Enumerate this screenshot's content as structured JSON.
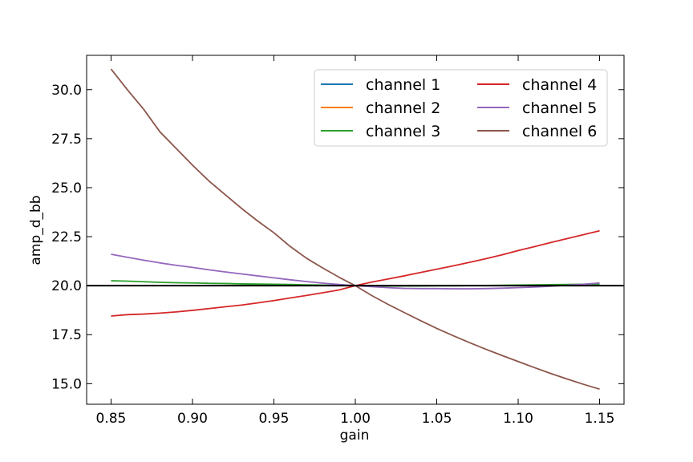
{
  "chart_data": {
    "type": "line",
    "title": "",
    "xlabel": "gain",
    "ylabel": "amp_d_bb",
    "xlim": [
      0.835,
      1.165
    ],
    "ylim": [
      13.95,
      31.75
    ],
    "xticks": [
      0.85,
      0.9,
      0.95,
      1.0,
      1.05,
      1.1,
      1.15
    ],
    "xtick_labels": [
      "0.85",
      "0.90",
      "0.95",
      "1.00",
      "1.05",
      "1.10",
      "1.15"
    ],
    "yticks": [
      15.0,
      17.5,
      20.0,
      22.5,
      25.0,
      27.5,
      30.0
    ],
    "ytick_labels": [
      "15.0",
      "17.5",
      "20.0",
      "22.5",
      "25.0",
      "27.5",
      "30.0"
    ],
    "grid": false,
    "legend_placement": "upper-right",
    "legend_columns": 2,
    "reference_line": {
      "y": 20.0,
      "color": "#000000"
    },
    "x": [
      0.85,
      0.86,
      0.87,
      0.88,
      0.89,
      0.9,
      0.91,
      0.92,
      0.93,
      0.94,
      0.95,
      0.96,
      0.97,
      0.98,
      0.99,
      1.0,
      1.01,
      1.02,
      1.03,
      1.04,
      1.05,
      1.06,
      1.07,
      1.08,
      1.09,
      1.1,
      1.11,
      1.12,
      1.13,
      1.14,
      1.15
    ],
    "series": [
      {
        "name": "channel 1",
        "color": "#1f77b4",
        "values": [
          20.0,
          20.0,
          20.0,
          20.0,
          20.0,
          20.0,
          20.0,
          20.0,
          20.0,
          20.0,
          20.0,
          20.0,
          20.0,
          20.0,
          20.0,
          20.0,
          20.0,
          20.0,
          20.0,
          20.0,
          20.0,
          20.0,
          20.0,
          20.0,
          20.0,
          20.0,
          20.0,
          20.0,
          20.0,
          20.0,
          20.0
        ]
      },
      {
        "name": "channel 2",
        "color": "#ff7f0e",
        "values": [
          20.0,
          20.0,
          20.0,
          20.0,
          20.0,
          20.0,
          20.0,
          20.0,
          20.0,
          20.0,
          20.0,
          20.0,
          20.0,
          20.0,
          20.0,
          20.0,
          20.0,
          20.0,
          20.0,
          20.0,
          20.0,
          20.0,
          20.0,
          20.0,
          20.0,
          20.0,
          20.0,
          20.0,
          20.0,
          20.0,
          20.0
        ]
      },
      {
        "name": "channel 3",
        "color": "#2ca02c",
        "values": [
          20.25,
          20.23,
          20.2,
          20.17,
          20.15,
          20.14,
          20.12,
          20.11,
          20.09,
          20.08,
          20.07,
          20.06,
          20.04,
          20.03,
          20.01,
          20.0,
          19.99,
          19.98,
          19.98,
          19.98,
          19.99,
          19.99,
          20.0,
          20.01,
          20.02,
          20.03,
          20.04,
          20.05,
          20.06,
          20.07,
          20.08
        ]
      },
      {
        "name": "channel 4",
        "color": "#d62728",
        "values": [
          18.45,
          18.52,
          18.55,
          18.6,
          18.66,
          18.74,
          18.83,
          18.92,
          19.01,
          19.12,
          19.24,
          19.37,
          19.5,
          19.64,
          19.78,
          20.0,
          20.18,
          20.34,
          20.5,
          20.67,
          20.84,
          21.01,
          21.19,
          21.37,
          21.57,
          21.79,
          21.99,
          22.2,
          22.4,
          22.6,
          22.8
        ]
      },
      {
        "name": "channel 5",
        "color": "#9467bd",
        "values": [
          21.6,
          21.45,
          21.3,
          21.16,
          21.04,
          20.93,
          20.81,
          20.7,
          20.6,
          20.5,
          20.4,
          20.3,
          20.21,
          20.13,
          20.06,
          20.0,
          19.95,
          19.9,
          19.86,
          19.85,
          19.85,
          19.84,
          19.84,
          19.85,
          19.87,
          19.9,
          19.93,
          19.97,
          20.02,
          20.07,
          20.14
        ]
      },
      {
        "name": "channel 6",
        "color": "#8c564b",
        "values": [
          31.05,
          30.0,
          29.0,
          27.85,
          27.0,
          26.15,
          25.35,
          24.65,
          23.95,
          23.3,
          22.7,
          22.0,
          21.4,
          20.9,
          20.43,
          20.0,
          19.5,
          19.05,
          18.63,
          18.22,
          17.82,
          17.45,
          17.1,
          16.76,
          16.44,
          16.13,
          15.82,
          15.52,
          15.24,
          14.97,
          14.72
        ]
      }
    ]
  }
}
